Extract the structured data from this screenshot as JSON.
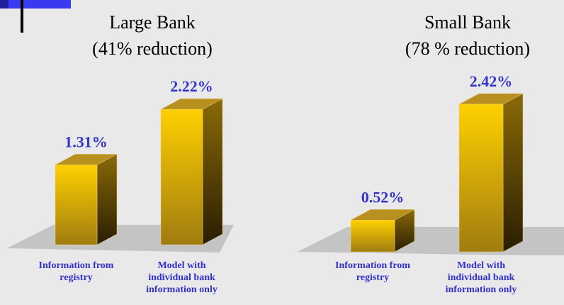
{
  "chart_data": [
    {
      "type": "bar3d",
      "title": "Large Bank",
      "subtitle": "(41% reduction)",
      "categories": [
        "Information from registry",
        "Model with individual bank information only"
      ],
      "values": [
        1.31,
        2.22
      ],
      "value_labels": [
        "1.31%",
        "2.22%"
      ],
      "color": "#ffcc00"
    },
    {
      "type": "bar3d",
      "title": "Small Bank",
      "subtitle": "(78 % reduction)",
      "categories": [
        "Information from registry",
        "Model with individual bank information only"
      ],
      "values": [
        0.52,
        2.42
      ],
      "value_labels": [
        "0.52%",
        "2.42%"
      ],
      "color": "#ffcc00"
    }
  ]
}
